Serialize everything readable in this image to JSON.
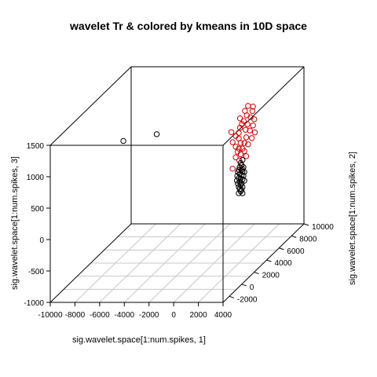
{
  "chart_data": {
    "type": "scatter",
    "title": "wavelet Tr & colored by kmeans in 10D space",
    "xlabel": "sig.wavelet.space[1:num.spikes, 1]",
    "ylabel": "sig.wavelet.space[1:num.spikes, 2]",
    "zlabel": "sig.wavelet.space[1:num.spikes, 3]",
    "x_ticks": [
      "-10000",
      "-8000",
      "-6000",
      "-4000",
      "-2000",
      "0",
      "2000",
      "4000"
    ],
    "y_ticks": [
      "-2000",
      "0",
      "2000",
      "4000",
      "6000",
      "8000",
      "10000"
    ],
    "z_ticks": [
      "-1000",
      "-500",
      "0",
      "500",
      "1000",
      "1500"
    ],
    "xlim": [
      -10000,
      4000
    ],
    "ylim": [
      -3000,
      10000
    ],
    "zlim": [
      -1000,
      1500
    ],
    "grid": "on base plane",
    "colors": {
      "cluster_1": "#cc0000",
      "cluster_2": "#000000",
      "box": "#000000",
      "grid": "#c8c8c8"
    },
    "series": [
      {
        "color": "#cc0000",
        "points": [
          [
            3000,
            3000,
            1550
          ],
          [
            3300,
            3200,
            1520
          ],
          [
            2800,
            2900,
            1480
          ],
          [
            3200,
            3300,
            1440
          ],
          [
            2900,
            3000,
            1400
          ],
          [
            2500,
            2700,
            1380
          ],
          [
            3100,
            3200,
            1350
          ],
          [
            2700,
            2900,
            1320
          ],
          [
            3300,
            3400,
            1300
          ],
          [
            2600,
            2800,
            1280
          ],
          [
            2900,
            3100,
            1250
          ],
          [
            2500,
            2700,
            1230
          ],
          [
            3200,
            3400,
            1200
          ],
          [
            1900,
            2500,
            1180
          ],
          [
            2800,
            3000,
            1170
          ],
          [
            2400,
            2700,
            1150
          ],
          [
            3000,
            3300,
            1130
          ],
          [
            2200,
            2600,
            1110
          ],
          [
            3300,
            3500,
            1080
          ],
          [
            2400,
            2700,
            1060
          ],
          [
            2800,
            3100,
            1040
          ],
          [
            2000,
            2500,
            1020
          ],
          [
            3100,
            3400,
            1000
          ],
          [
            2500,
            2800,
            980
          ],
          [
            2700,
            3000,
            960
          ],
          [
            2200,
            2600,
            940
          ],
          [
            2900,
            3200,
            920
          ],
          [
            2400,
            2700,
            900
          ],
          [
            2600,
            2900,
            880
          ],
          [
            2300,
            2700,
            850
          ],
          [
            2700,
            3000,
            830
          ],
          [
            2500,
            2800,
            800
          ],
          [
            2200,
            2600,
            770
          ],
          [
            2800,
            3100,
            740
          ],
          [
            2400,
            2800,
            700
          ],
          [
            2000,
            2500,
            600
          ],
          [
            2600,
            2900,
            560
          ]
        ]
      },
      {
        "color": "#000000",
        "points": [
          [
            -6800,
            2400,
            1050
          ],
          [
            -4400,
            3000,
            1100
          ],
          [
            2600,
            2900,
            700
          ],
          [
            2500,
            2800,
            660
          ],
          [
            2550,
            2850,
            620
          ],
          [
            2450,
            2750,
            600
          ],
          [
            2650,
            2950,
            580
          ],
          [
            2400,
            2700,
            560
          ],
          [
            2550,
            2850,
            545
          ],
          [
            2350,
            2650,
            530
          ],
          [
            2600,
            2900,
            515
          ],
          [
            2700,
            3000,
            500
          ],
          [
            2450,
            2750,
            490
          ],
          [
            2300,
            2650,
            470
          ],
          [
            2550,
            2850,
            460
          ],
          [
            2650,
            2950,
            445
          ],
          [
            2400,
            2700,
            430
          ],
          [
            2500,
            2800,
            415
          ],
          [
            2300,
            2600,
            400
          ],
          [
            2600,
            2900,
            390
          ],
          [
            2450,
            2750,
            370
          ],
          [
            2700,
            3000,
            360
          ],
          [
            2350,
            2650,
            345
          ],
          [
            2550,
            2850,
            330
          ],
          [
            2500,
            2800,
            310
          ],
          [
            2400,
            2700,
            290
          ],
          [
            2600,
            2900,
            270
          ],
          [
            2450,
            2750,
            250
          ],
          [
            2550,
            2850,
            230
          ],
          [
            2500,
            2800,
            210
          ],
          [
            2400,
            2700,
            190
          ],
          [
            2600,
            2900,
            170
          ]
        ]
      }
    ]
  }
}
